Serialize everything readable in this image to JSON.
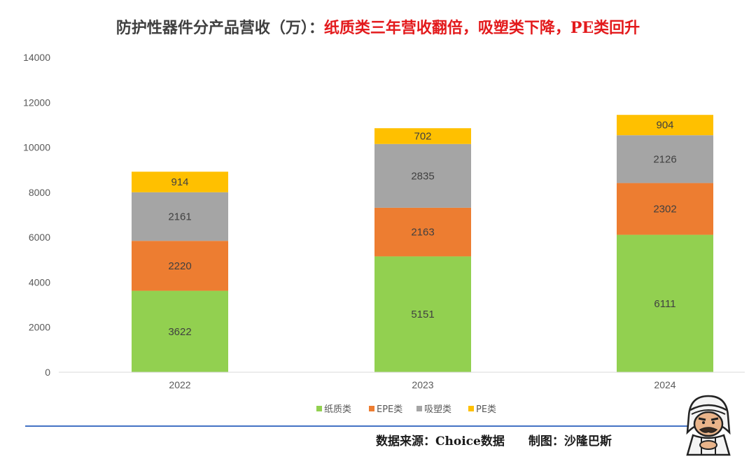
{
  "title": {
    "main": "防护性器件分产品营收（万）：",
    "sub": "纸质类三年营收翻倍，吸塑类下降，PE类回升"
  },
  "footer": {
    "source": "数据来源：Choice数据",
    "author": "制图：沙隆巴斯"
  },
  "chart_data": {
    "type": "bar",
    "stacked": true,
    "categories": [
      "2022",
      "2023",
      "2024"
    ],
    "series": [
      {
        "name": "纸质类",
        "color": "#92d050",
        "values": [
          3622,
          5151,
          6111
        ]
      },
      {
        "name": "EPE类",
        "color": "#ed7d31",
        "values": [
          2220,
          2163,
          2302
        ]
      },
      {
        "name": "吸塑类",
        "color": "#a5a5a5",
        "values": [
          2161,
          2835,
          2126
        ]
      },
      {
        "name": "PE类",
        "color": "#ffc000",
        "values": [
          914,
          702,
          904
        ]
      }
    ],
    "ylim": [
      0,
      14000
    ],
    "yticks": [
      0,
      2000,
      4000,
      6000,
      8000,
      10000,
      12000,
      14000
    ],
    "grid": false,
    "legend_position": "bottom",
    "data_labels": true
  }
}
